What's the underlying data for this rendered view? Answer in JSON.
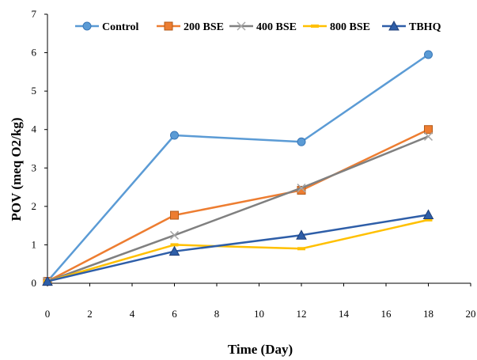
{
  "chart_data": {
    "type": "line",
    "title": "",
    "xlabel": "Time (Day)",
    "ylabel": "POV (meq O2/kg)",
    "xlim": [
      0,
      20
    ],
    "ylim": [
      0,
      7
    ],
    "x_ticks": [
      "0",
      "2",
      "4",
      "6",
      "8",
      "10",
      "12",
      "14",
      "16",
      "18",
      "20"
    ],
    "y_ticks": [
      "0",
      "1",
      "2",
      "3",
      "4",
      "5",
      "6",
      "7"
    ],
    "grid": false,
    "legend_position": "top",
    "x": [
      0,
      6,
      12,
      18
    ],
    "series": [
      {
        "name": "Control",
        "values": [
          0.05,
          3.85,
          3.68,
          5.95
        ],
        "color": "#5b9bd5",
        "marker": "circle"
      },
      {
        "name": "200 BSE",
        "values": [
          0.05,
          1.77,
          2.42,
          4.0
        ],
        "color": "#ed7d31",
        "marker": "square"
      },
      {
        "name": "400 BSE",
        "values": [
          0.05,
          1.25,
          2.48,
          3.82
        ],
        "color": "#808080",
        "marker": "x"
      },
      {
        "name": "800 BSE",
        "values": [
          0.05,
          1.0,
          0.9,
          1.65
        ],
        "color": "#ffc000",
        "marker": "dash"
      },
      {
        "name": "TBHQ",
        "values": [
          0.05,
          0.83,
          1.25,
          1.78
        ],
        "color": "#2e5ea8",
        "marker": "triangle"
      }
    ]
  }
}
